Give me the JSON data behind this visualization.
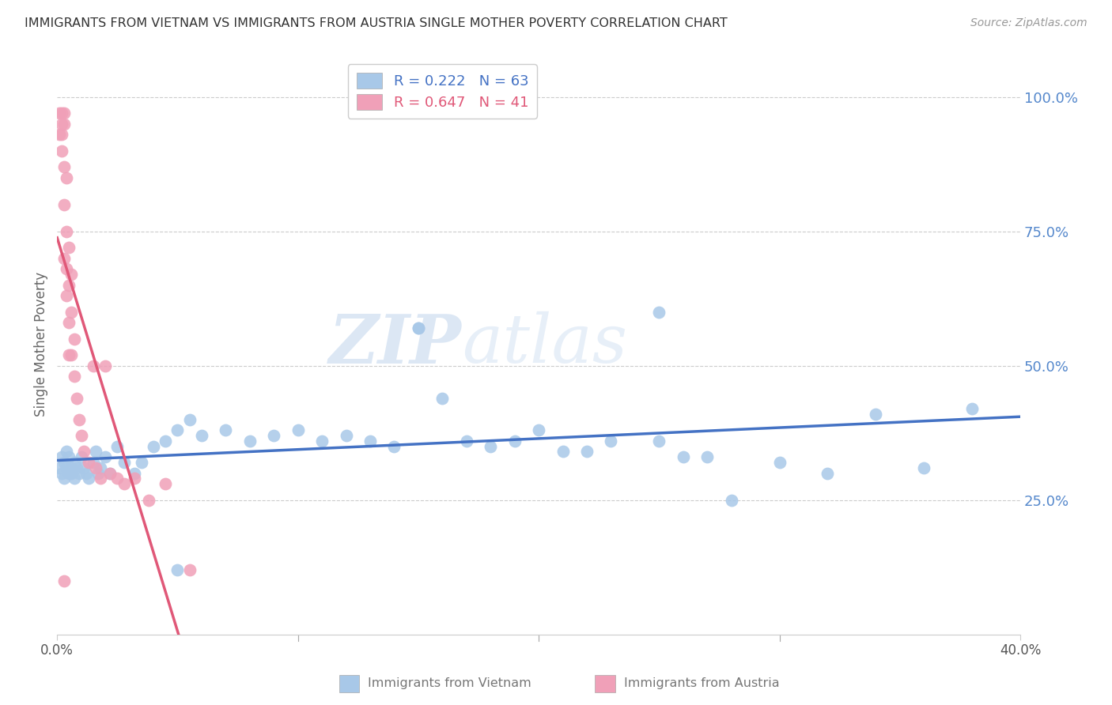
{
  "title": "IMMIGRANTS FROM VIETNAM VS IMMIGRANTS FROM AUSTRIA SINGLE MOTHER POVERTY CORRELATION CHART",
  "source": "Source: ZipAtlas.com",
  "ylabel": "Single Mother Poverty",
  "ytick_labels": [
    "100.0%",
    "75.0%",
    "50.0%",
    "25.0%"
  ],
  "ytick_values": [
    1.0,
    0.75,
    0.5,
    0.25
  ],
  "xlim": [
    0.0,
    0.4
  ],
  "ylim": [
    0.0,
    1.08
  ],
  "legend_r_vietnam": "R = 0.222",
  "legend_n_vietnam": "N = 63",
  "legend_r_austria": "R = 0.647",
  "legend_n_austria": "N = 41",
  "color_vietnam": "#a8c8e8",
  "color_austria": "#f0a0b8",
  "color_vietnam_line": "#4472c4",
  "color_austria_line": "#e05878",
  "color_right_labels": "#5588cc",
  "watermark_zip": "ZIP",
  "watermark_atlas": "atlas",
  "vietnam_x": [
    0.001,
    0.002,
    0.002,
    0.003,
    0.003,
    0.004,
    0.004,
    0.005,
    0.005,
    0.006,
    0.006,
    0.007,
    0.007,
    0.008,
    0.009,
    0.01,
    0.011,
    0.012,
    0.013,
    0.015,
    0.016,
    0.017,
    0.018,
    0.02,
    0.022,
    0.025,
    0.028,
    0.032,
    0.035,
    0.04,
    0.045,
    0.05,
    0.055,
    0.06,
    0.07,
    0.08,
    0.09,
    0.1,
    0.11,
    0.12,
    0.13,
    0.14,
    0.15,
    0.16,
    0.17,
    0.18,
    0.19,
    0.2,
    0.21,
    0.22,
    0.23,
    0.25,
    0.26,
    0.27,
    0.28,
    0.3,
    0.32,
    0.34,
    0.36,
    0.38,
    0.15,
    0.25,
    0.05
  ],
  "vietnam_y": [
    0.31,
    0.33,
    0.3,
    0.32,
    0.29,
    0.31,
    0.34,
    0.3,
    0.33,
    0.31,
    0.3,
    0.32,
    0.29,
    0.31,
    0.3,
    0.33,
    0.31,
    0.3,
    0.29,
    0.32,
    0.34,
    0.3,
    0.31,
    0.33,
    0.3,
    0.35,
    0.32,
    0.3,
    0.32,
    0.35,
    0.36,
    0.38,
    0.4,
    0.37,
    0.38,
    0.36,
    0.37,
    0.38,
    0.36,
    0.37,
    0.36,
    0.35,
    0.57,
    0.44,
    0.36,
    0.35,
    0.36,
    0.38,
    0.34,
    0.34,
    0.36,
    0.36,
    0.33,
    0.33,
    0.25,
    0.32,
    0.3,
    0.41,
    0.31,
    0.42,
    0.57,
    0.6,
    0.12
  ],
  "austria_x": [
    0.001,
    0.001,
    0.002,
    0.002,
    0.002,
    0.002,
    0.003,
    0.003,
    0.003,
    0.003,
    0.003,
    0.004,
    0.004,
    0.004,
    0.004,
    0.005,
    0.005,
    0.005,
    0.005,
    0.006,
    0.006,
    0.006,
    0.007,
    0.007,
    0.008,
    0.009,
    0.01,
    0.011,
    0.013,
    0.015,
    0.016,
    0.018,
    0.02,
    0.022,
    0.025,
    0.028,
    0.032,
    0.038,
    0.045,
    0.055,
    0.003
  ],
  "austria_y": [
    0.97,
    0.93,
    0.97,
    0.95,
    0.93,
    0.9,
    0.97,
    0.95,
    0.87,
    0.8,
    0.7,
    0.85,
    0.75,
    0.68,
    0.63,
    0.72,
    0.65,
    0.58,
    0.52,
    0.67,
    0.6,
    0.52,
    0.55,
    0.48,
    0.44,
    0.4,
    0.37,
    0.34,
    0.32,
    0.5,
    0.31,
    0.29,
    0.5,
    0.3,
    0.29,
    0.28,
    0.29,
    0.25,
    0.28,
    0.12,
    0.1
  ]
}
